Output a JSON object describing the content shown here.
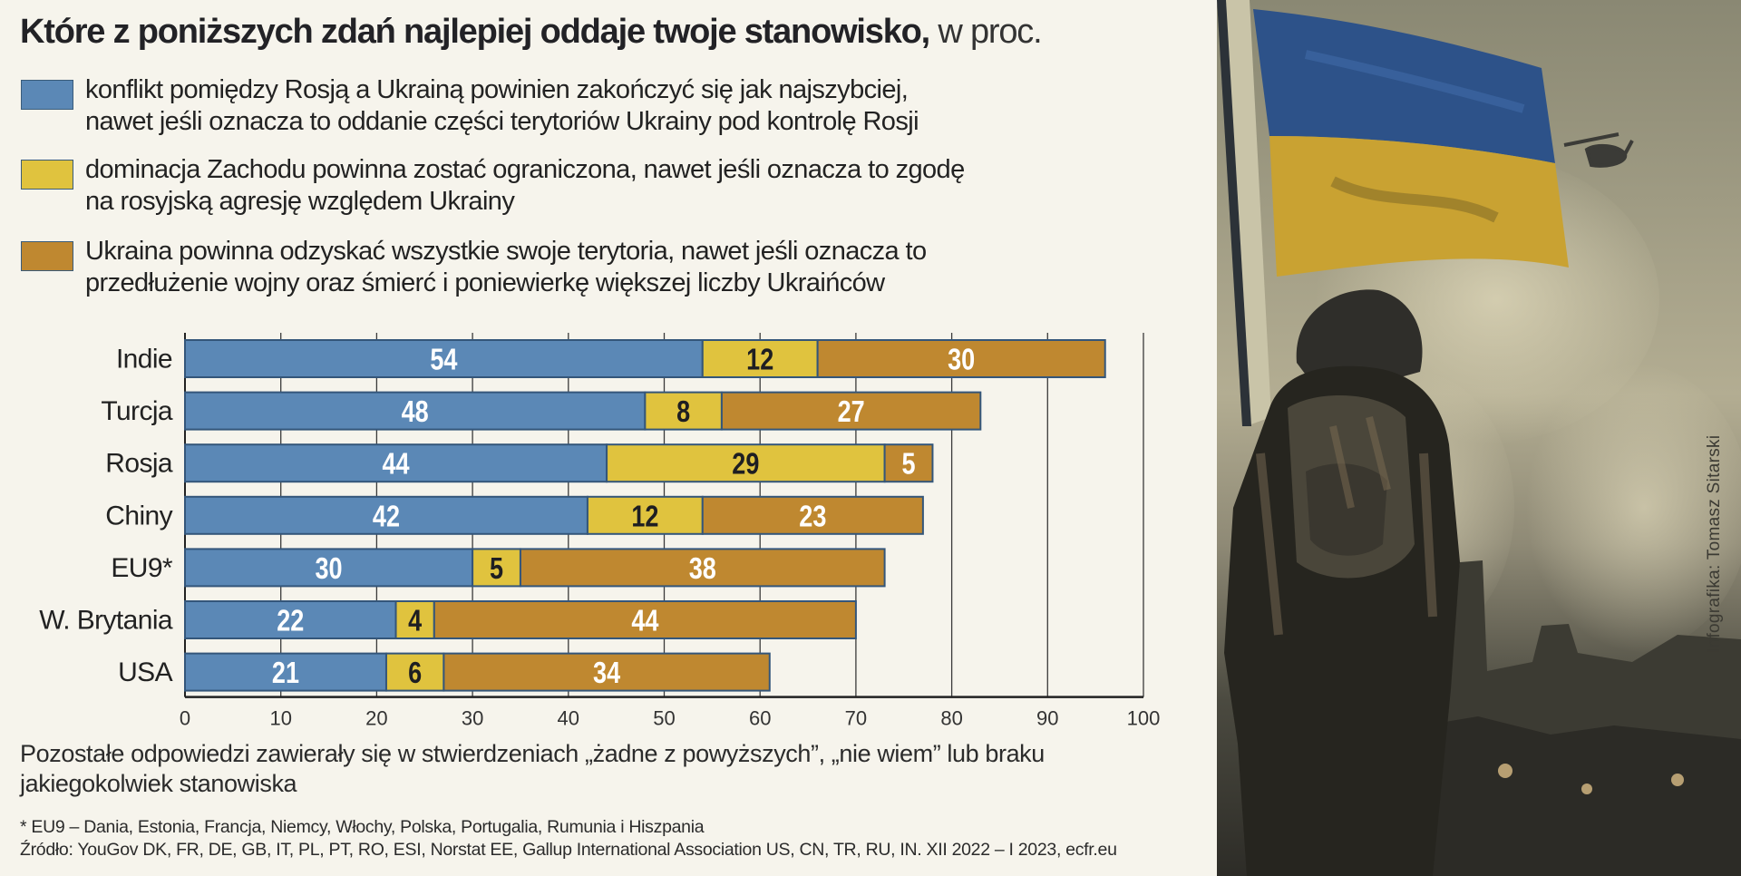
{
  "title": {
    "bold": "Które z poniższych zdań najlepiej oddaje twoje stanowisko,",
    "light": " w proc."
  },
  "legend": [
    {
      "color": "#5b88b6",
      "lines": [
        "konflikt pomiędzy Rosją a Ukrainą powinien zakończyć się jak najszybciej,",
        "nawet jeśli oznacza to oddanie części terytoriów Ukrainy pod kontrolę Rosji"
      ]
    },
    {
      "color": "#e0c33e",
      "lines": [
        "dominacja Zachodu powinna zostać ograniczona, nawet jeśli oznacza to zgodę",
        "na rosyjską agresję względem Ukrainy"
      ]
    },
    {
      "color": "#bf8830",
      "lines": [
        "Ukraina powinna odzyskać wszystkie swoje terytoria, nawet jeśli oznacza to",
        "przedłużenie wojny oraz śmierć i poniewierkę większej liczby Ukraińców"
      ]
    }
  ],
  "chart_data": {
    "type": "bar",
    "orientation": "horizontal",
    "stacked": true,
    "title": "Które z poniższych zdań najlepiej oddaje twoje stanowisko, w proc.",
    "xlabel": "",
    "ylabel": "",
    "categories": [
      "Indie",
      "Turcja",
      "Rosja",
      "Chiny",
      "EU9*",
      "W. Brytania",
      "USA"
    ],
    "series": [
      {
        "name": "konflikt pomiędzy Rosją a Ukrainą powinien zakończyć się jak najszybciej, nawet jeśli oznacza to oddanie części terytoriów Ukrainy pod kontrolę Rosji",
        "color": "#5b88b6",
        "label_color": "#ffffff",
        "values": [
          54,
          48,
          44,
          42,
          30,
          22,
          21
        ]
      },
      {
        "name": "dominacja Zachodu powinna zostać ograniczona, nawet jeśli oznacza to zgodę na rosyjską agresję względem Ukrainy",
        "color": "#e0c33e",
        "label_color": "#1e1e22",
        "values": [
          12,
          8,
          29,
          12,
          5,
          4,
          6
        ]
      },
      {
        "name": "Ukraina powinna odzyskać wszystkie swoje terytoria, nawet jeśli oznacza to przedłużenie wojny oraz śmierć i poniewierkę większej liczby Ukraińców",
        "color": "#bf8830",
        "label_color": "#ffffff",
        "values": [
          30,
          27,
          5,
          23,
          38,
          44,
          34
        ]
      }
    ],
    "xlim": [
      0,
      100
    ],
    "xticks": [
      0,
      10,
      20,
      30,
      40,
      50,
      60,
      70,
      80,
      90,
      100
    ],
    "grid": true,
    "legend_position": "top"
  },
  "note": [
    "Pozostałe odpowiedzi zawierały się w stwierdzeniach „żadne z powyższych”, „nie wiem” lub braku",
    "jakiegokolwiek stanowiska"
  ],
  "footnotes": [
    "* EU9 – Dania, Estonia, Francja, Niemcy, Włochy, Polska, Portugalia, Rumunia i Hiszpania",
    "Źródło: YouGov DK, FR, DE, GB, IT, PL, PT, RO, ESI, Norstat EE, Gallup International Association US, CN, TR, RU, IN. XII 2022 – I 2023, ecfr.eu"
  ],
  "credit": "Infografika: Tomasz Sitarski",
  "illustration": {
    "description": "soldier with Ukrainian flag",
    "flag_colors": [
      "#2d5289",
      "#c9a232"
    ]
  }
}
